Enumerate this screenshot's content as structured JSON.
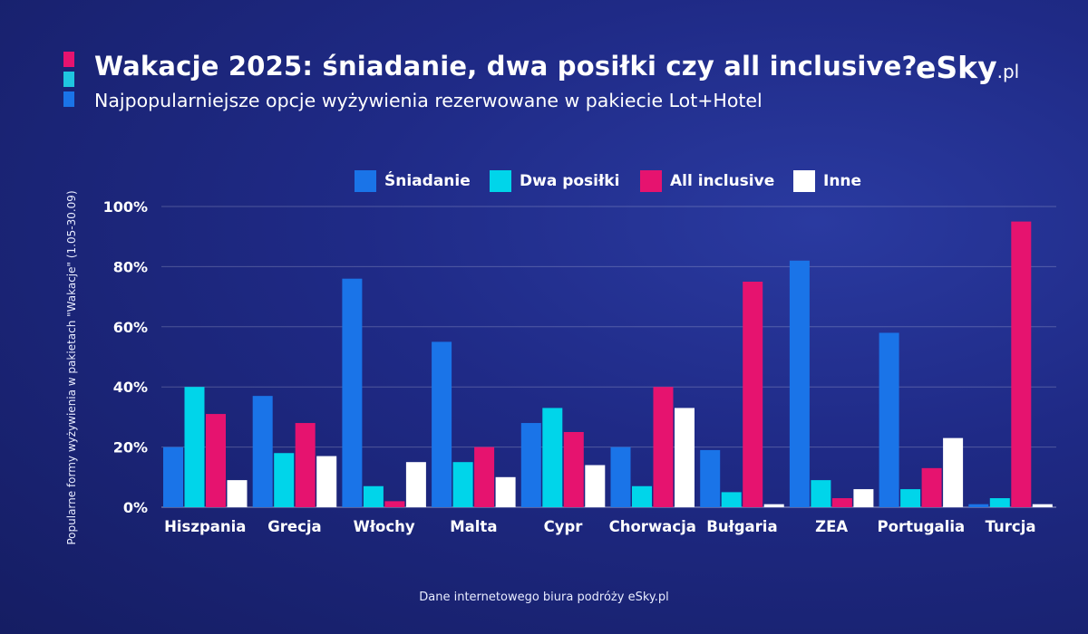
{
  "header": {
    "title": "Wakacje 2025: śniadanie, dwa posiłki czy all inclusive?",
    "subtitle": "Najpopularniejsze opcje wyżywienia rezerwowane w pakiecie Lot+Hotel",
    "accent_colors": [
      "#e6136f",
      "#1fc6e0",
      "#1a74e8"
    ]
  },
  "logo": {
    "main": "eSky",
    "tld": ".pl"
  },
  "footer": {
    "source": "Dane internetowego biura podróży eSky.pl"
  },
  "chart_data": {
    "type": "bar",
    "title": "Wakacje 2025: śniadanie, dwa posiłki czy all inclusive?",
    "subtitle": "Najpopularniejsze opcje wyżywienia rezerwowane w pakiecie Lot+Hotel",
    "ylabel": "Popularne formy wyżywienia w pakietach \"Wakacje\" (1.05-30.09)",
    "xlabel": "",
    "ylim": [
      0,
      100
    ],
    "yticks": [
      0,
      20,
      40,
      60,
      80,
      100
    ],
    "ytick_labels": [
      "0%",
      "20%",
      "40%",
      "60%",
      "80%",
      "100%"
    ],
    "grid": true,
    "legend_position": "top-center",
    "categories": [
      "Hiszpania",
      "Grecja",
      "Włochy",
      "Malta",
      "Cypr",
      "Chorwacja",
      "Bułgaria",
      "ZEA",
      "Portugalia",
      "Turcja"
    ],
    "series": [
      {
        "name": "Śniadanie",
        "color": "#1a74e8",
        "values": [
          20,
          37,
          76,
          55,
          28,
          20,
          19,
          82,
          58,
          1
        ]
      },
      {
        "name": "Dwa posiłki",
        "color": "#00d5ea",
        "values": [
          40,
          18,
          7,
          15,
          33,
          7,
          5,
          9,
          6,
          3
        ]
      },
      {
        "name": "All inclusive",
        "color": "#e6136f",
        "values": [
          31,
          28,
          2,
          20,
          25,
          40,
          75,
          3,
          13,
          95
        ]
      },
      {
        "name": "Inne",
        "color": "#ffffff",
        "values": [
          9,
          17,
          15,
          10,
          14,
          33,
          1,
          6,
          23,
          1
        ]
      }
    ]
  }
}
